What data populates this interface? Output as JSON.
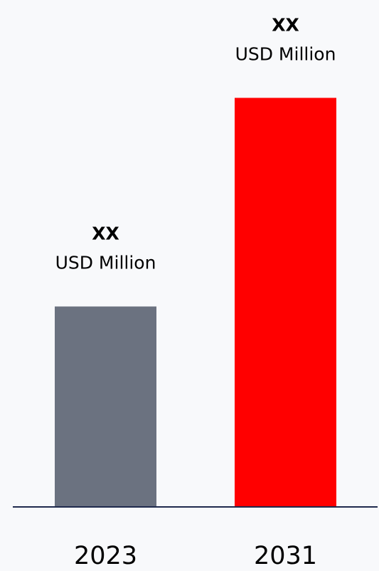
{
  "chart_data": {
    "type": "bar",
    "categories": [
      "2023",
      "2031"
    ],
    "values": [
      0.49,
      1.0
    ],
    "ylim": [
      0,
      1.1
    ],
    "bar_colors": [
      "#6b7280",
      "#ff0000"
    ],
    "axis_color": "#1f2a4d",
    "value_labels": [
      {
        "main": "XX",
        "unit": "USD Million"
      },
      {
        "main": "XX",
        "unit": "USD Million"
      }
    ],
    "grid": false,
    "legend": "none"
  }
}
